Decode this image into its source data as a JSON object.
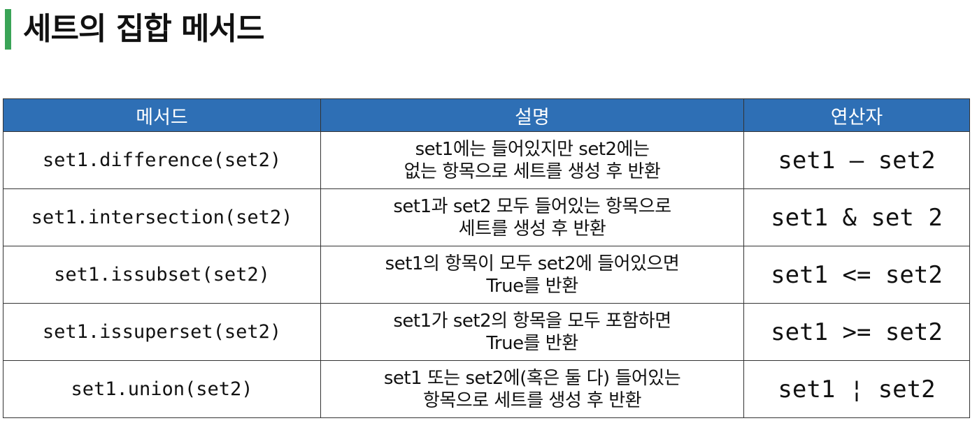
{
  "page": {
    "title": "세트의 집합 메서드",
    "accent_color": "#3aa457",
    "header_color": "#2e6fb5"
  },
  "table": {
    "headers": {
      "method": "메서드",
      "description": "설명",
      "operator": "연산자"
    },
    "rows": [
      {
        "method": "set1.difference(set2)",
        "description_line1": "set1에는 들어있지만 set2에는",
        "description_line2": "없는 항목으로 세트를 생성 후 반환",
        "operator": "set1 – set2"
      },
      {
        "method": "set1.intersection(set2)",
        "description_line1": "set1과 set2 모두 들어있는 항목으로",
        "description_line2": "세트를 생성 후 반환",
        "operator": "set1 & set 2"
      },
      {
        "method": "set1.issubset(set2)",
        "description_line1": "set1의 항목이 모두 set2에 들어있으면",
        "description_line2": "True를 반환",
        "operator": "set1 <= set2"
      },
      {
        "method": "set1.issuperset(set2)",
        "description_line1": "set1가 set2의 항목을 모두 포함하면",
        "description_line2": "True를 반환",
        "operator": "set1 >= set2"
      },
      {
        "method": "set1.union(set2)",
        "description_line1": "set1 또는 set2에(혹은 둘 다) 들어있는",
        "description_line2": "항목으로 세트를 생성 후 반환",
        "operator": "set1 ¦ set2"
      }
    ]
  }
}
